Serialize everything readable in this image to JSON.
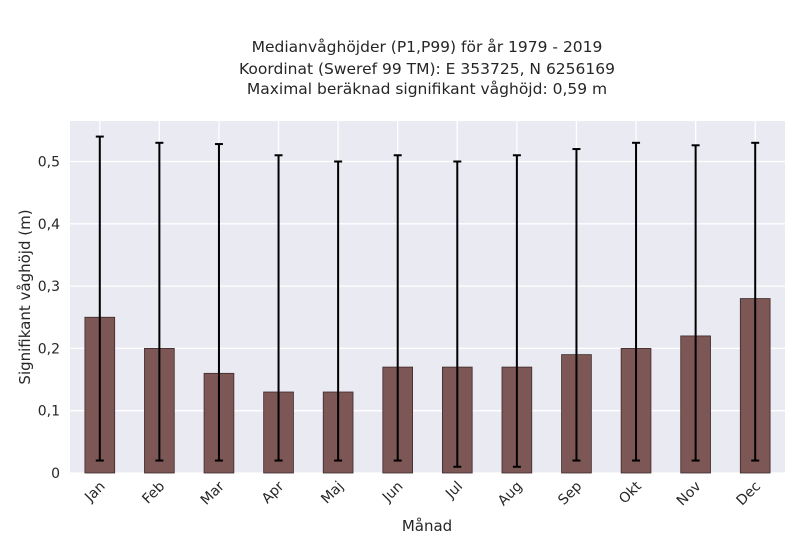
{
  "chart_data": {
    "type": "bar",
    "title_lines": [
      "Medianvåghöjder (P1,P99) för år 1979 - 2019",
      "Koordinat (Sweref 99 TM): E 353725, N 6256169",
      "Maximal beräknad signifikant våghöjd: 0,59 m"
    ],
    "xlabel": "Månad",
    "ylabel": "Signifikant våghöjd (m)",
    "categories": [
      "Jan",
      "Feb",
      "Mar",
      "Apr",
      "Maj",
      "Jun",
      "Jul",
      "Aug",
      "Sep",
      "Okt",
      "Nov",
      "Dec"
    ],
    "values": [
      0.25,
      0.2,
      0.16,
      0.13,
      0.13,
      0.17,
      0.17,
      0.17,
      0.19,
      0.2,
      0.22,
      0.28
    ],
    "p1": [
      0.02,
      0.02,
      0.02,
      0.02,
      0.02,
      0.02,
      0.01,
      0.01,
      0.02,
      0.02,
      0.02,
      0.02
    ],
    "p99": [
      0.54,
      0.53,
      0.528,
      0.51,
      0.5,
      0.51,
      0.5,
      0.51,
      0.52,
      0.53,
      0.526,
      0.53
    ],
    "yticks": [
      0,
      0.1,
      0.2,
      0.3,
      0.4,
      0.5
    ],
    "ytick_labels": [
      "0",
      "0,1",
      "0,2",
      "0,3",
      "0,4",
      "0,5"
    ],
    "ylim": [
      0,
      0.565
    ],
    "grid": true,
    "colors": {
      "bar": "#7d5656",
      "bar_edge": "#3d2a2a",
      "errorbar": "#000000",
      "plot_background": "#eaeaf2",
      "grid": "#ffffff"
    }
  }
}
